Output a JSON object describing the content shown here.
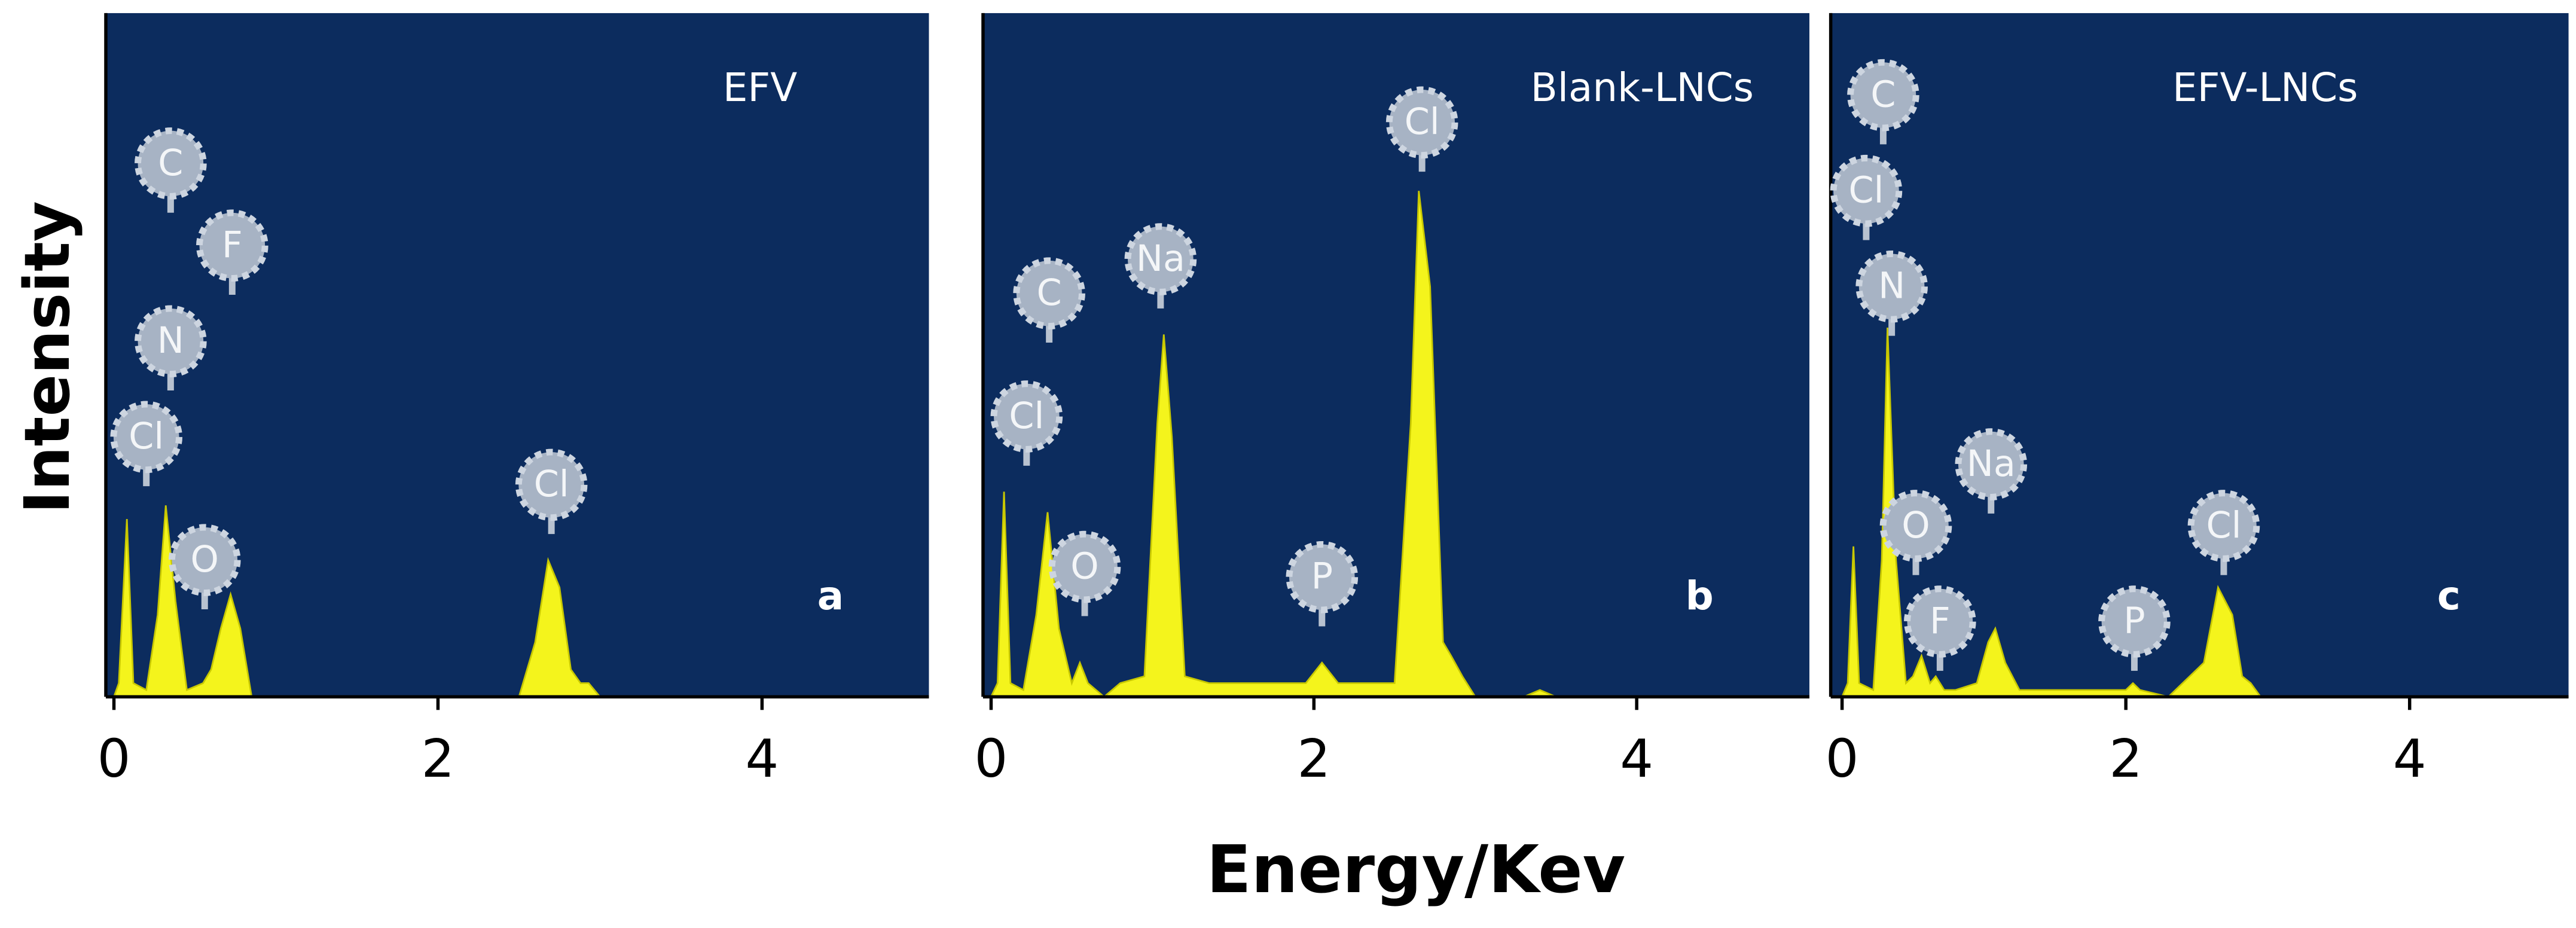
{
  "chart_data": [
    {
      "type": "area",
      "title": "EFV",
      "panel_label": "a",
      "ylabel": "Intensity",
      "x": [
        0,
        0.03,
        0.08,
        0.12,
        0.2,
        0.27,
        0.32,
        0.38,
        0.45,
        0.55,
        0.6,
        0.66,
        0.72,
        0.78,
        0.85,
        1.0,
        2.5,
        2.6,
        2.68,
        2.75,
        2.82,
        2.88,
        2.93,
        3.0,
        5.0
      ],
      "values": [
        0,
        2,
        26,
        2,
        1,
        12,
        28,
        14,
        1,
        2,
        4,
        10,
        15,
        10,
        0,
        0,
        0,
        8,
        20,
        16,
        4,
        2,
        2,
        0,
        0
      ],
      "color": "#f4f41c",
      "background": "#0c2c5e",
      "xlim": [
        -0.05,
        5.03
      ],
      "ylim": [
        0,
        100
      ],
      "xticks": [
        0,
        2,
        4
      ],
      "annotations": [
        {
          "text": "C",
          "x": 0.35,
          "y": 78
        },
        {
          "text": "F",
          "x": 0.73,
          "y": 66
        },
        {
          "text": "N",
          "x": 0.35,
          "y": 52
        },
        {
          "text": "Cl",
          "x": 0.2,
          "y": 38
        },
        {
          "text": "O",
          "x": 0.56,
          "y": 20
        },
        {
          "text": "Cl",
          "x": 2.7,
          "y": 31
        }
      ]
    },
    {
      "type": "area",
      "title": "Blank-LNCs",
      "panel_label": "b",
      "xlabel": "Energy/Kev",
      "x": [
        0,
        0.04,
        0.08,
        0.12,
        0.2,
        0.28,
        0.35,
        0.42,
        0.5,
        0.55,
        0.6,
        0.7,
        0.8,
        0.95,
        1.03,
        1.07,
        1.12,
        1.2,
        1.35,
        1.95,
        2.05,
        2.15,
        2.5,
        2.6,
        2.65,
        2.72,
        2.8,
        2.85,
        2.92,
        3.0,
        3.3,
        3.4,
        3.5,
        5.0
      ],
      "values": [
        0,
        2,
        30,
        2,
        1,
        12,
        27,
        10,
        2,
        5,
        2,
        0,
        2,
        3,
        40,
        53,
        38,
        3,
        2,
        2,
        5,
        2,
        2,
        40,
        74,
        60,
        8,
        6,
        3,
        0,
        0,
        1,
        0,
        0
      ],
      "color": "#f4f41c",
      "background": "#0c2c5e",
      "xlim": [
        -0.05,
        5.07
      ],
      "ylim": [
        0,
        100
      ],
      "xticks": [
        0,
        2,
        4
      ],
      "annotations": [
        {
          "text": "C",
          "x": 0.36,
          "y": 59
        },
        {
          "text": "Na",
          "x": 1.05,
          "y": 64
        },
        {
          "text": "Cl",
          "x": 2.67,
          "y": 84
        },
        {
          "text": "Cl",
          "x": 0.22,
          "y": 41
        },
        {
          "text": "O",
          "x": 0.58,
          "y": 19
        },
        {
          "text": "P",
          "x": 2.05,
          "y": 17.5
        }
      ]
    },
    {
      "type": "area",
      "title": "EFV-LNCs",
      "panel_label": "c",
      "x": [
        0,
        0.04,
        0.08,
        0.12,
        0.22,
        0.28,
        0.32,
        0.38,
        0.45,
        0.5,
        0.56,
        0.62,
        0.66,
        0.72,
        0.8,
        0.95,
        1.03,
        1.08,
        1.15,
        1.25,
        2.0,
        2.05,
        2.1,
        2.3,
        2.55,
        2.65,
        2.75,
        2.82,
        2.88,
        2.95,
        5.0
      ],
      "values": [
        0,
        2,
        22,
        2,
        1,
        20,
        54,
        20,
        2,
        3,
        6,
        2,
        3,
        1,
        1,
        2,
        8,
        10,
        5,
        1,
        1,
        2,
        1,
        0,
        5,
        16,
        12,
        3,
        2,
        0,
        0
      ],
      "color": "#f4f41c",
      "background": "#0c2c5e",
      "xlim": [
        -0.08,
        5.12
      ],
      "ylim": [
        0,
        100
      ],
      "xticks": [
        0,
        2,
        4
      ],
      "annotations": [
        {
          "text": "C",
          "x": 0.29,
          "y": 88
        },
        {
          "text": "Cl",
          "x": 0.17,
          "y": 74
        },
        {
          "text": "N",
          "x": 0.35,
          "y": 60
        },
        {
          "text": "Na",
          "x": 1.05,
          "y": 34
        },
        {
          "text": "O",
          "x": 0.52,
          "y": 25
        },
        {
          "text": "F",
          "x": 0.69,
          "y": 11
        },
        {
          "text": "P",
          "x": 2.06,
          "y": 11
        },
        {
          "text": "Cl",
          "x": 2.69,
          "y": 25
        }
      ]
    }
  ]
}
